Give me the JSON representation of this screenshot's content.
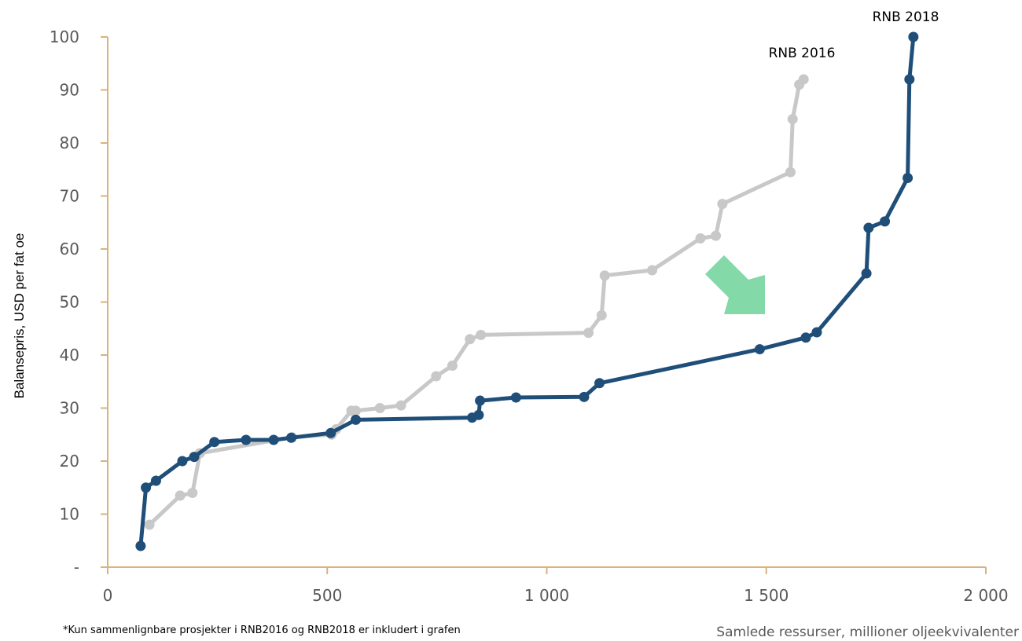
{
  "chart_data": {
    "type": "line",
    "title": "",
    "xlabel": "Samlede ressurser, millioner oljeekvivalenter",
    "ylabel": "Balansepris, USD per fat oe",
    "footnote": "*Kun sammenlignbare prosjekter i RNB2016 og RNB2018 er inkludert i grafen",
    "xlim": [
      0,
      2000
    ],
    "ylim": [
      0,
      100
    ],
    "x_ticks": [
      {
        "value": 0,
        "label": "0"
      },
      {
        "value": 500,
        "label": "500"
      },
      {
        "value": 1000,
        "label": "1 000"
      },
      {
        "value": 1500,
        "label": "1 500"
      },
      {
        "value": 2000,
        "label": "2 000"
      }
    ],
    "y_ticks": [
      {
        "value": 0,
        "label": "-"
      },
      {
        "value": 10,
        "label": "10"
      },
      {
        "value": 20,
        "label": "20"
      },
      {
        "value": 30,
        "label": "30"
      },
      {
        "value": 40,
        "label": "40"
      },
      {
        "value": 50,
        "label": "50"
      },
      {
        "value": 60,
        "label": "60"
      },
      {
        "value": 70,
        "label": "70"
      },
      {
        "value": 80,
        "label": "80"
      },
      {
        "value": 90,
        "label": "90"
      },
      {
        "value": 100,
        "label": "100"
      }
    ],
    "grid": false,
    "axis_color": "#d9b27c",
    "arrow_color": "#84d9a8",
    "series": [
      {
        "name": "RNB 2016",
        "color": "#c8c8c8",
        "points": [
          {
            "x": 95,
            "y": 8
          },
          {
            "x": 165,
            "y": 13.5
          },
          {
            "x": 193,
            "y": 14
          },
          {
            "x": 210,
            "y": 21.5
          },
          {
            "x": 420,
            "y": 24.5
          },
          {
            "x": 510,
            "y": 25
          },
          {
            "x": 520,
            "y": 26
          },
          {
            "x": 555,
            "y": 29.5
          },
          {
            "x": 565,
            "y": 29.5
          },
          {
            "x": 620,
            "y": 30
          },
          {
            "x": 668,
            "y": 30.5
          },
          {
            "x": 748,
            "y": 36
          },
          {
            "x": 785,
            "y": 38
          },
          {
            "x": 825,
            "y": 43
          },
          {
            "x": 850,
            "y": 43.8
          },
          {
            "x": 1095,
            "y": 44.2
          },
          {
            "x": 1125,
            "y": 47.5
          },
          {
            "x": 1132,
            "y": 55
          },
          {
            "x": 1240,
            "y": 56
          },
          {
            "x": 1350,
            "y": 62
          },
          {
            "x": 1385,
            "y": 62.5
          },
          {
            "x": 1400,
            "y": 68.5
          },
          {
            "x": 1555,
            "y": 74.5
          },
          {
            "x": 1560,
            "y": 84.5
          },
          {
            "x": 1575,
            "y": 91
          },
          {
            "x": 1585,
            "y": 92
          }
        ]
      },
      {
        "name": "RNB 2018",
        "color": "#1f4e79",
        "points": [
          {
            "x": 75,
            "y": 4
          },
          {
            "x": 87,
            "y": 15
          },
          {
            "x": 110,
            "y": 16.3
          },
          {
            "x": 170,
            "y": 20
          },
          {
            "x": 197,
            "y": 20.8
          },
          {
            "x": 243,
            "y": 23.6
          },
          {
            "x": 315,
            "y": 24
          },
          {
            "x": 378,
            "y": 24
          },
          {
            "x": 418,
            "y": 24.4
          },
          {
            "x": 508,
            "y": 25.3
          },
          {
            "x": 565,
            "y": 27.8
          },
          {
            "x": 830,
            "y": 28.2
          },
          {
            "x": 845,
            "y": 28.7
          },
          {
            "x": 848,
            "y": 31.4
          },
          {
            "x": 930,
            "y": 32
          },
          {
            "x": 1085,
            "y": 32.1
          },
          {
            "x": 1120,
            "y": 34.7
          },
          {
            "x": 1485,
            "y": 41.1
          },
          {
            "x": 1590,
            "y": 43.3
          },
          {
            "x": 1615,
            "y": 44.3
          },
          {
            "x": 1728,
            "y": 55.4
          },
          {
            "x": 1733,
            "y": 64
          },
          {
            "x": 1770,
            "y": 65.2
          },
          {
            "x": 1822,
            "y": 73.4
          },
          {
            "x": 1826,
            "y": 92
          },
          {
            "x": 1835,
            "y": 100
          }
        ]
      }
    ]
  }
}
